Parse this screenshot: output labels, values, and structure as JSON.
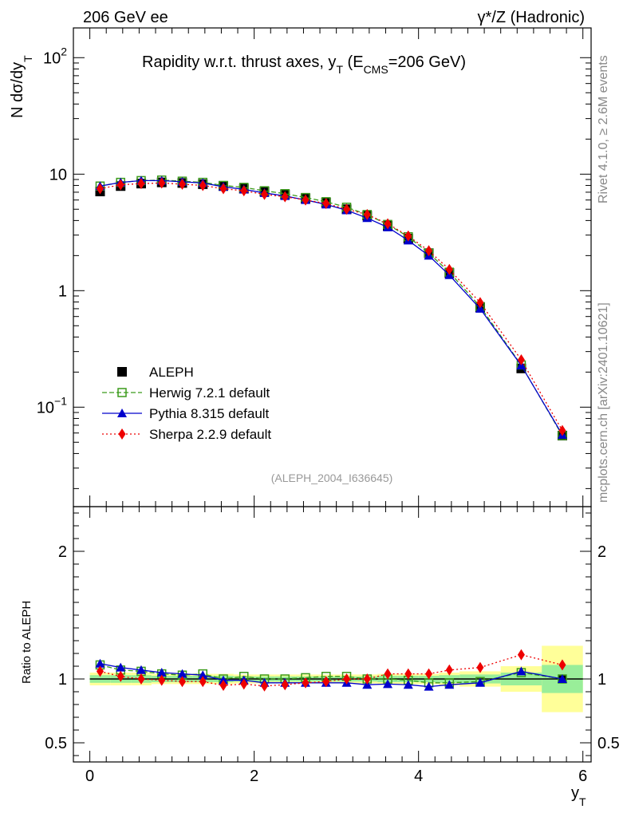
{
  "header": {
    "left": "206 GeV ee",
    "right": "γ*/Z (Hadronic)"
  },
  "side_text": {
    "rivet": "Rivet 4.1.0, ≥ 2.6M events",
    "mcplots": "mcplots.cern.ch [arXiv:2401.10621]"
  },
  "chart_data": [
    {
      "type": "line",
      "panel": "main",
      "title": "Rapidity w.r.t. thrust axes, y_T (E_CMS=206 GeV)",
      "title_parts": {
        "main": "Rapidity w.r.t. thrust axes, y",
        "sub1": "T",
        "mid": " (E",
        "sub2": "CMS",
        "end": "=206 GeV)"
      },
      "ylabel": "N  dσ/dy_T",
      "ylabel_parts": {
        "main": "N  dσ/dy",
        "sub": "T"
      },
      "yscale": "log",
      "ylim": [
        0.014,
        180
      ],
      "xlim": [
        -0.2,
        6.1
      ],
      "ytick_labels": [
        "10^-1",
        "1",
        "10",
        "10^2"
      ],
      "ytick_display": [
        {
          "base": "10",
          "exp": "−1",
          "value": 0.1
        },
        {
          "base": "1",
          "exp": "",
          "value": 1
        },
        {
          "base": "10",
          "exp": "",
          "value": 10
        },
        {
          "base": "10",
          "exp": "2",
          "value": 100
        }
      ],
      "reference_label": "(ALEPH_2004_I636645)",
      "legend_position": "center-left",
      "x": [
        0.125,
        0.375,
        0.625,
        0.875,
        1.125,
        1.375,
        1.625,
        1.875,
        2.125,
        2.375,
        2.625,
        2.875,
        3.125,
        3.375,
        3.625,
        3.875,
        4.125,
        4.375,
        4.75,
        5.25,
        5.75
      ],
      "series": [
        {
          "name": "ALEPH",
          "style": "data",
          "color": "#000000",
          "values": [
            7.1,
            7.9,
            8.3,
            8.5,
            8.4,
            8.2,
            7.9,
            7.5,
            7.1,
            6.7,
            6.2,
            5.7,
            5.0,
            4.4,
            3.6,
            2.8,
            2.1,
            1.42,
            0.72,
            0.215,
            0.057
          ]
        },
        {
          "name": "Herwig 7.2.1 default",
          "style": "dashed",
          "marker": "open-square",
          "color": "#3a9a1a",
          "values": [
            7.9,
            8.5,
            8.8,
            8.9,
            8.7,
            8.5,
            8.0,
            7.7,
            7.2,
            6.8,
            6.3,
            5.8,
            5.2,
            4.5,
            3.7,
            2.9,
            2.1,
            1.44,
            0.73,
            0.23,
            0.057
          ]
        },
        {
          "name": "Pythia 8.315 default",
          "style": "solid",
          "marker": "triangle",
          "color": "#0000cc",
          "values": [
            7.9,
            8.5,
            8.8,
            8.8,
            8.6,
            8.4,
            7.8,
            7.4,
            6.9,
            6.5,
            6.0,
            5.5,
            4.9,
            4.2,
            3.5,
            2.7,
            2.0,
            1.36,
            0.7,
            0.228,
            0.058
          ]
        },
        {
          "name": "Sherpa 2.2.9 default",
          "style": "dotted",
          "marker": "diamond",
          "color": "#ee0000",
          "values": [
            7.5,
            8.1,
            8.3,
            8.4,
            8.2,
            8.0,
            7.5,
            7.2,
            6.7,
            6.4,
            6.0,
            5.6,
            5.0,
            4.5,
            3.75,
            2.95,
            2.2,
            1.52,
            0.79,
            0.255,
            0.063
          ]
        }
      ]
    },
    {
      "type": "line",
      "panel": "ratio",
      "ylabel": "Ratio to ALEPH",
      "xlabel": "y_T",
      "xlabel_parts": {
        "main": "y",
        "sub": "T"
      },
      "yscale": "linear",
      "ylim": [
        0.35,
        2.35
      ],
      "xlim": [
        -0.2,
        6.1
      ],
      "ytick_labels": [
        "0.5",
        "1",
        "2"
      ],
      "ytick_values": [
        0.5,
        1,
        2
      ],
      "xtick_labels": [
        "0",
        "2",
        "4",
        "6"
      ],
      "xtick_values": [
        0,
        2,
        4,
        6
      ],
      "bin_edges": [
        0,
        0.25,
        0.5,
        0.75,
        1.0,
        1.25,
        1.5,
        1.75,
        2.0,
        2.25,
        2.5,
        2.75,
        3.0,
        3.25,
        3.5,
        3.75,
        4.0,
        4.25,
        4.5,
        5.0,
        5.5,
        6.0
      ],
      "band_yellow_halfwidth": [
        0.05,
        0.05,
        0.05,
        0.04,
        0.04,
        0.04,
        0.04,
        0.035,
        0.035,
        0.035,
        0.035,
        0.035,
        0.035,
        0.035,
        0.04,
        0.04,
        0.04,
        0.05,
        0.06,
        0.1,
        0.26
      ],
      "band_green_halfwidth": [
        0.03,
        0.03,
        0.03,
        0.025,
        0.025,
        0.025,
        0.025,
        0.02,
        0.02,
        0.02,
        0.02,
        0.02,
        0.02,
        0.02,
        0.025,
        0.025,
        0.025,
        0.03,
        0.035,
        0.05,
        0.11
      ],
      "x": [
        0.125,
        0.375,
        0.625,
        0.875,
        1.125,
        1.375,
        1.625,
        1.875,
        2.125,
        2.375,
        2.625,
        2.875,
        3.125,
        3.375,
        3.625,
        3.875,
        4.125,
        4.375,
        4.75,
        5.25,
        5.75
      ],
      "series": [
        {
          "name": "Herwig 7.2.1 default",
          "color": "#3a9a1a",
          "values": [
            1.11,
            1.07,
            1.06,
            1.04,
            1.03,
            1.04,
            1.0,
            1.02,
            1.0,
            1.0,
            1.01,
            1.02,
            1.02,
            1.0,
            1.0,
            0.99,
            0.97,
            0.97,
            0.98,
            1.05,
            1.0
          ]
        },
        {
          "name": "Pythia 8.315 default",
          "color": "#0000cc",
          "values": [
            1.12,
            1.09,
            1.07,
            1.05,
            1.04,
            1.03,
            0.99,
            0.99,
            0.97,
            0.97,
            0.97,
            0.97,
            0.97,
            0.955,
            0.96,
            0.955,
            0.94,
            0.955,
            0.97,
            1.06,
            1.0
          ]
        },
        {
          "name": "Sherpa 2.2.9 default",
          "color": "#ee0000",
          "values": [
            1.06,
            1.02,
            1.0,
            0.99,
            0.98,
            0.98,
            0.95,
            0.96,
            0.945,
            0.955,
            0.97,
            0.98,
            1.0,
            1.0,
            1.04,
            1.04,
            1.04,
            1.07,
            1.09,
            1.19,
            1.11
          ]
        }
      ]
    }
  ]
}
